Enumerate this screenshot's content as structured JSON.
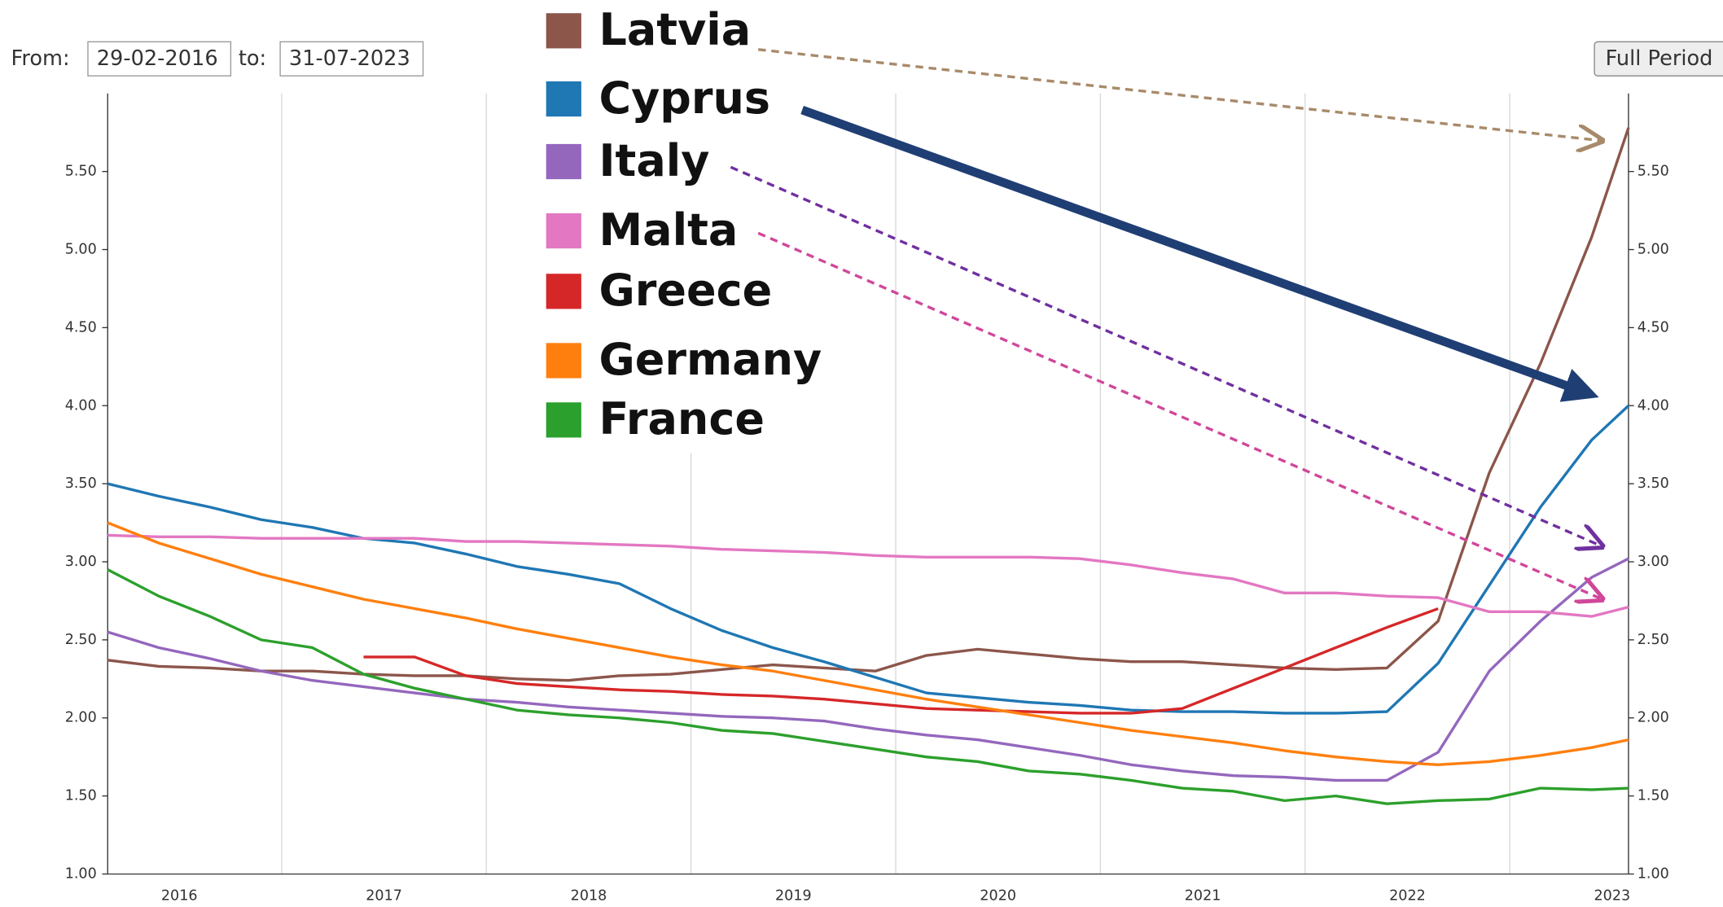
{
  "controls": {
    "from_label": "From:",
    "from_value": "29-02-2016",
    "to_label": "to:",
    "to_value": "31-07-2023",
    "button": "Full Period"
  },
  "chart_data": {
    "type": "line",
    "x": [
      2016.15,
      2016.4,
      2016.65,
      2016.9,
      2017.15,
      2017.4,
      2017.65,
      2017.9,
      2018.15,
      2018.4,
      2018.65,
      2018.9,
      2019.15,
      2019.4,
      2019.65,
      2019.9,
      2020.15,
      2020.4,
      2020.65,
      2020.9,
      2021.15,
      2021.4,
      2021.65,
      2021.9,
      2022.15,
      2022.4,
      2022.65,
      2022.9,
      2023.15,
      2023.4,
      2023.58
    ],
    "series": [
      {
        "name": "Latvia",
        "color": "#8c564b",
        "values": [
          2.37,
          2.33,
          2.32,
          2.3,
          2.3,
          2.28,
          2.27,
          2.27,
          2.25,
          2.24,
          2.27,
          2.28,
          2.31,
          2.34,
          2.32,
          2.3,
          2.4,
          2.44,
          2.41,
          2.38,
          2.36,
          2.36,
          2.34,
          2.32,
          2.31,
          2.32,
          2.62,
          3.57,
          4.27,
          5.08,
          5.78
        ]
      },
      {
        "name": "Cyprus",
        "color": "#1f77b4",
        "values": [
          3.5,
          3.42,
          3.35,
          3.27,
          3.22,
          3.15,
          3.12,
          3.05,
          2.97,
          2.92,
          2.86,
          2.7,
          2.56,
          2.45,
          2.36,
          2.26,
          2.16,
          2.13,
          2.1,
          2.08,
          2.05,
          2.04,
          2.04,
          2.03,
          2.03,
          2.04,
          2.35,
          2.85,
          3.35,
          3.78,
          4.0
        ]
      },
      {
        "name": "Italy",
        "color": "#9467bd",
        "values": [
          2.55,
          2.45,
          2.38,
          2.3,
          2.24,
          2.2,
          2.16,
          2.12,
          2.1,
          2.07,
          2.05,
          2.03,
          2.01,
          2.0,
          1.98,
          1.93,
          1.89,
          1.86,
          1.81,
          1.76,
          1.7,
          1.66,
          1.63,
          1.62,
          1.6,
          1.6,
          1.78,
          2.3,
          2.62,
          2.9,
          3.02
        ]
      },
      {
        "name": "Malta",
        "color": "#e377c2",
        "values": [
          3.17,
          3.16,
          3.16,
          3.15,
          3.15,
          3.15,
          3.15,
          3.13,
          3.13,
          3.12,
          3.11,
          3.1,
          3.08,
          3.07,
          3.06,
          3.04,
          3.03,
          3.03,
          3.03,
          3.02,
          2.98,
          2.93,
          2.89,
          2.8,
          2.8,
          2.78,
          2.77,
          2.68,
          2.68,
          2.65,
          2.71
        ]
      },
      {
        "name": "Greece",
        "color": "#d62728",
        "values": [
          null,
          null,
          null,
          null,
          null,
          2.39,
          2.39,
          2.27,
          2.22,
          2.2,
          2.18,
          2.17,
          2.15,
          2.14,
          2.12,
          2.09,
          2.06,
          2.05,
          2.04,
          2.03,
          2.03,
          2.06,
          2.19,
          2.32,
          2.45,
          2.58,
          2.7,
          null,
          null,
          null,
          null
        ]
      },
      {
        "name": "Germany",
        "color": "#ff7f0e",
        "values": [
          3.25,
          3.12,
          3.02,
          2.92,
          2.84,
          2.76,
          2.7,
          2.64,
          2.57,
          2.51,
          2.45,
          2.39,
          2.34,
          2.3,
          2.24,
          2.18,
          2.12,
          2.07,
          2.02,
          1.97,
          1.92,
          1.88,
          1.84,
          1.79,
          1.75,
          1.72,
          1.7,
          1.72,
          1.76,
          1.81,
          1.86
        ]
      },
      {
        "name": "France",
        "color": "#2ca02c",
        "values": [
          2.95,
          2.78,
          2.65,
          2.5,
          2.45,
          2.28,
          2.19,
          2.12,
          2.05,
          2.02,
          2.0,
          1.97,
          1.92,
          1.9,
          1.85,
          1.8,
          1.75,
          1.72,
          1.66,
          1.64,
          1.6,
          1.55,
          1.53,
          1.47,
          1.5,
          1.45,
          1.47,
          1.48,
          1.55,
          1.54,
          1.55
        ]
      }
    ],
    "xlim": [
      2016.15,
      2023.58
    ],
    "xticks": [
      {
        "value": 2016.5,
        "label": "2016"
      },
      {
        "value": 2017.5,
        "label": "2017"
      },
      {
        "value": 2018.5,
        "label": "2018"
      },
      {
        "value": 2019.5,
        "label": "2019"
      },
      {
        "value": 2020.5,
        "label": "2020"
      },
      {
        "value": 2021.5,
        "label": "2021"
      },
      {
        "value": 2022.5,
        "label": "2022"
      },
      {
        "value": 2023.5,
        "label": "2023"
      }
    ],
    "xgrid": [
      2017,
      2018,
      2019,
      2020,
      2021,
      2022,
      2023
    ],
    "ylim": [
      1,
      6
    ],
    "yticks": [
      {
        "value": 1,
        "label": "1.00"
      },
      {
        "value": 1.5,
        "label": "1.50"
      },
      {
        "value": 2,
        "label": "2.00"
      },
      {
        "value": 2.5,
        "label": "2.50"
      },
      {
        "value": 3,
        "label": "3.00"
      },
      {
        "value": 3.5,
        "label": "3.50"
      },
      {
        "value": 4,
        "label": "4.00"
      },
      {
        "value": 4.5,
        "label": "4.50"
      },
      {
        "value": 5,
        "label": "5.00"
      },
      {
        "value": 5.5,
        "label": "5.50"
      }
    ]
  }
}
